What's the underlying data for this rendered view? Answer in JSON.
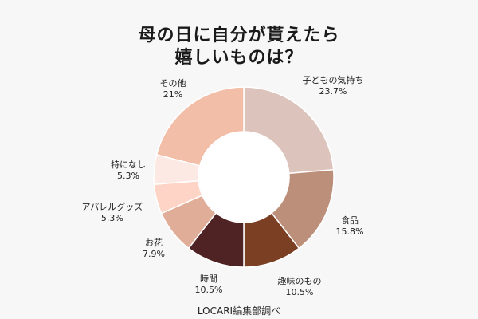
{
  "title_line1": "母の日に自分が貰えたら",
  "title_line2": "嬉しいものは？",
  "source": "LOCARI編集部調べ",
  "chart_data": {
    "type": "pie",
    "title": "母の日に自分が貰えたら嬉しいものは？",
    "categories": [
      "子どもの気持ち",
      "食品",
      "趣味のもの",
      "時間",
      "お花",
      "アパレルグッズ",
      "特になし",
      "その他"
    ],
    "values": [
      23.7,
      15.8,
      10.5,
      10.5,
      7.9,
      5.3,
      5.3,
      21
    ],
    "value_labels": [
      "23.7%",
      "15.8%",
      "10.5%",
      "10.5%",
      "7.9%",
      "5.3%",
      "5.3%",
      "21%"
    ],
    "colors": [
      "#dcc3bb",
      "#bc8f7b",
      "#7b3f24",
      "#4f2223",
      "#dfad98",
      "#fdd4c5",
      "#fde9e3",
      "#f2bea8"
    ],
    "style": "donut"
  }
}
